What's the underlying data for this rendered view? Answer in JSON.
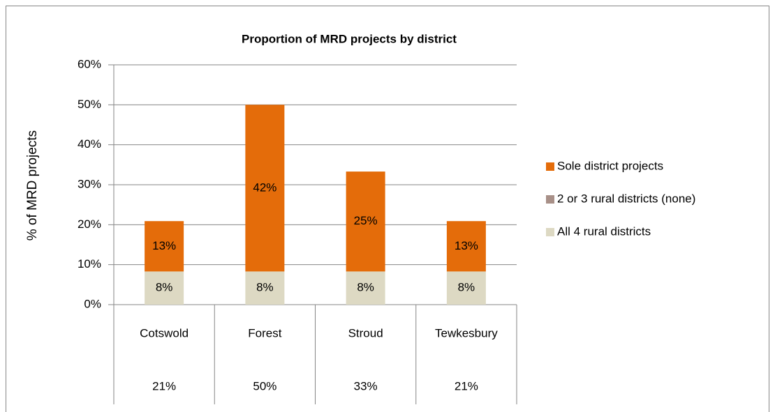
{
  "chart_data": {
    "type": "stacked_bar",
    "title": "Proportion of MRD projects by district",
    "ylabel": "% of MRD projects",
    "categories": [
      "Cotswold",
      "Forest",
      "Stroud",
      "Tewkesbury"
    ],
    "series": [
      {
        "name": "All 4 rural districts",
        "color": "#ddd9c3",
        "values": [
          8.3,
          8.3,
          8.3,
          8.3
        ],
        "value_labels": [
          "8%",
          "8%",
          "8%",
          "8%"
        ]
      },
      {
        "name": "2 or 3 rural districts (none)",
        "color": "#a89088",
        "values": [
          0,
          0,
          0,
          0
        ]
      },
      {
        "name": "Sole district projects",
        "color": "#e46c0a",
        "values": [
          12.6,
          41.7,
          25,
          12.6
        ],
        "value_labels": [
          "13%",
          "42%",
          "25%",
          "13%"
        ]
      }
    ],
    "total_labels": [
      "21%",
      "50%",
      "33%",
      "21%"
    ],
    "ylim": [
      0,
      60
    ],
    "yticks": [
      {
        "value": 0,
        "label": "0%"
      },
      {
        "value": 10,
        "label": "10%"
      },
      {
        "value": 20,
        "label": "20%"
      },
      {
        "value": 30,
        "label": "30%"
      },
      {
        "value": 40,
        "label": "40%"
      },
      {
        "value": 50,
        "label": "50%"
      },
      {
        "value": 60,
        "label": "60%"
      }
    ],
    "grid": true,
    "legend": "right"
  }
}
